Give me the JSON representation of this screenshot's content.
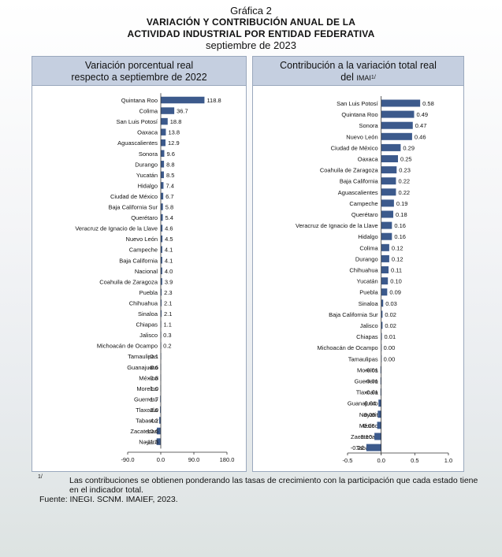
{
  "header": {
    "figure_label": "Gráfica 2",
    "title_line1": "VARIACIÓN Y CONTRIBUCIÓN ANUAL DE LA",
    "title_line2": "ACTIVIDAD INDUSTRIAL POR ENTIDAD FEDERATIVA",
    "subtitle": "septiembre de 2023"
  },
  "footer": {
    "footnote_mark": "1/",
    "footnote_text": "Las contribuciones se obtienen ponderando las tasas de crecimiento con la participación que cada estado tiene en el indicador total.",
    "source_label": "Fuente:",
    "source_text": "INEGI. SCNM. IMAIEF, 2023."
  },
  "chart_data": [
    {
      "type": "bar",
      "orientation": "horizontal",
      "title_line1": "Variación porcentual real",
      "title_line2": "respecto a septiembre de 2022",
      "bar_color": "#3c5a8c",
      "xlim": [
        -90,
        180
      ],
      "ticks": [
        -90,
        0,
        90,
        180
      ],
      "tick_labels": [
        "-90.0",
        "0.0",
        "90.0",
        "180.0"
      ],
      "grid": false,
      "categories": [
        "Quintana Roo",
        "Colima",
        "San Luis Potosí",
        "Oaxaca",
        "Aguascalientes",
        "Sonora",
        "Durango",
        "Yucatán",
        "Hidalgo",
        "Ciudad de México",
        "Baja California Sur",
        "Querétaro",
        "Veracruz de Ignacio de la Llave",
        "Nuevo León",
        "Campeche",
        "Baja California",
        "Nacional",
        "Coahuila de Zaragoza",
        "Puebla",
        "Chihuahua",
        "Sinaloa",
        "Chiapas",
        "Jalisco",
        "Michoacán de Ocampo",
        "Tamaulipas",
        "Guanajuato",
        "México",
        "Morelos",
        "Guerrero",
        "Tlaxcala",
        "Tabasco",
        "Zacatecas",
        "Nayarit"
      ],
      "values": [
        118.8,
        36.7,
        18.8,
        13.8,
        12.9,
        9.6,
        8.8,
        8.5,
        7.4,
        6.7,
        5.8,
        5.4,
        4.6,
        4.5,
        4.1,
        4.1,
        4.0,
        3.9,
        2.3,
        2.1,
        2.1,
        1.1,
        0.3,
        0.2,
        -0.1,
        -0.6,
        -0.8,
        -1.0,
        -1.7,
        -2.0,
        -4.2,
        -10.6,
        -11.3
      ],
      "labels": [
        "118.8",
        "36.7",
        "18.8",
        "13.8",
        "12.9",
        "9.6",
        "8.8",
        "8.5",
        "7.4",
        "6.7",
        "5.8",
        "5.4",
        "4.6",
        "4.5",
        "4.1",
        "4.1",
        "4.0",
        "3.9",
        "2.3",
        "2.1",
        "2.1",
        "1.1",
        "0.3",
        "0.2",
        "-0.1",
        "-0.6",
        "-0.8",
        "-1.0",
        "-1.7",
        "-2.0",
        "-4.2",
        "-10.6",
        "-11.3"
      ]
    },
    {
      "type": "bar",
      "orientation": "horizontal",
      "title_line1": "Contribución a la variación total real",
      "title_line2_prefix": "del",
      "title_line2_index": "IMAI",
      "title_line2_mark": "1/",
      "bar_color": "#3c5a8c",
      "xlim": [
        -0.5,
        1.0
      ],
      "ticks": [
        -0.5,
        0,
        0.5,
        1.0
      ],
      "tick_labels": [
        "-0.5",
        "0.0",
        "0.5",
        "1.0"
      ],
      "grid": false,
      "categories": [
        "San Luis Potosí",
        "Quintana Roo",
        "Sonora",
        "Nuevo León",
        "Ciudad de México",
        "Oaxaca",
        "Coahuila de Zaragoza",
        "Baja California",
        "Aguascalientes",
        "Campeche",
        "Querétaro",
        "Veracruz de Ignacio de la Llave",
        "Hidalgo",
        "Colima",
        "Durango",
        "Chihuahua",
        "Yucatán",
        "Puebla",
        "Sinaloa",
        "Baja California Sur",
        "Jalisco",
        "Chiapas",
        "Michoacán de Ocampo",
        "Tamaulipas",
        "Morelos",
        "Guerrero",
        "Tlaxcala",
        "Guanajuato",
        "Nayarit",
        "México",
        "Zacatecas",
        "Tabasco"
      ],
      "values": [
        0.58,
        0.49,
        0.47,
        0.46,
        0.29,
        0.25,
        0.23,
        0.22,
        0.22,
        0.19,
        0.18,
        0.16,
        0.16,
        0.12,
        0.12,
        0.11,
        0.1,
        0.09,
        0.03,
        0.02,
        0.02,
        0.01,
        0.0,
        0.0,
        -0.01,
        -0.01,
        -0.01,
        -0.04,
        -0.05,
        -0.06,
        -0.1,
        -0.22
      ],
      "labels": [
        "0.58",
        "0.49",
        "0.47",
        "0.46",
        "0.29",
        "0.25",
        "0.23",
        "0.22",
        "0.22",
        "0.19",
        "0.18",
        "0.16",
        "0.16",
        "0.12",
        "0.12",
        "0.11",
        "0.10",
        "0.09",
        "0.03",
        "0.02",
        "0.02",
        "0.01",
        "0.00",
        "0.00",
        "-0.01",
        "-0.01",
        "-0.01",
        "-0.04",
        "-0.05",
        "-0.06",
        "-0.10",
        "-0.22"
      ]
    }
  ]
}
